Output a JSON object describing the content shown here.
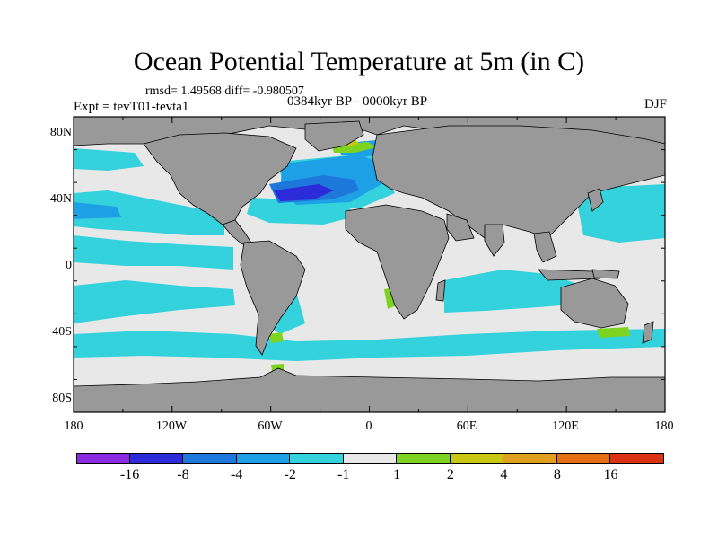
{
  "title": "Ocean Potential Temperature at 5m (in C)",
  "stats": "rmsd= 1.49568 diff= -0.980507",
  "experiment": "Expt = tevT01-tevta1",
  "period": "0384kyr BP - 0000kyr BP",
  "season": "DJF",
  "map": {
    "lat_ticks": [
      "80N",
      "40N",
      "0",
      "40S",
      "80S"
    ],
    "lon_ticks": [
      "180",
      "120W",
      "60W",
      "0",
      "60E",
      "120E",
      "180"
    ],
    "lat_range": [
      -90,
      90
    ],
    "lon_range": [
      -180,
      180
    ]
  },
  "legend": {
    "colors": [
      "#8a2be2",
      "#2b2bd9",
      "#1e78dc",
      "#1ea0e6",
      "#33d2dc",
      "#e8e8e8",
      "#7ed321",
      "#c8c814",
      "#e0a01e",
      "#e66e14",
      "#dc3214"
    ],
    "labels": [
      "-16",
      "-8",
      "-4",
      "-2",
      "-1",
      "1",
      "2",
      "4",
      "8",
      "16"
    ]
  },
  "colors": {
    "land": "#999999",
    "ocean_neutral": "#e8e8e8",
    "cool_light": "#33d2dc",
    "cool_mid": "#1ea0e6",
    "cool_strong": "#1e78dc",
    "cool_deep": "#2b2bd9",
    "warm_light": "#7ed321",
    "warm_mid": "#c8c814"
  }
}
